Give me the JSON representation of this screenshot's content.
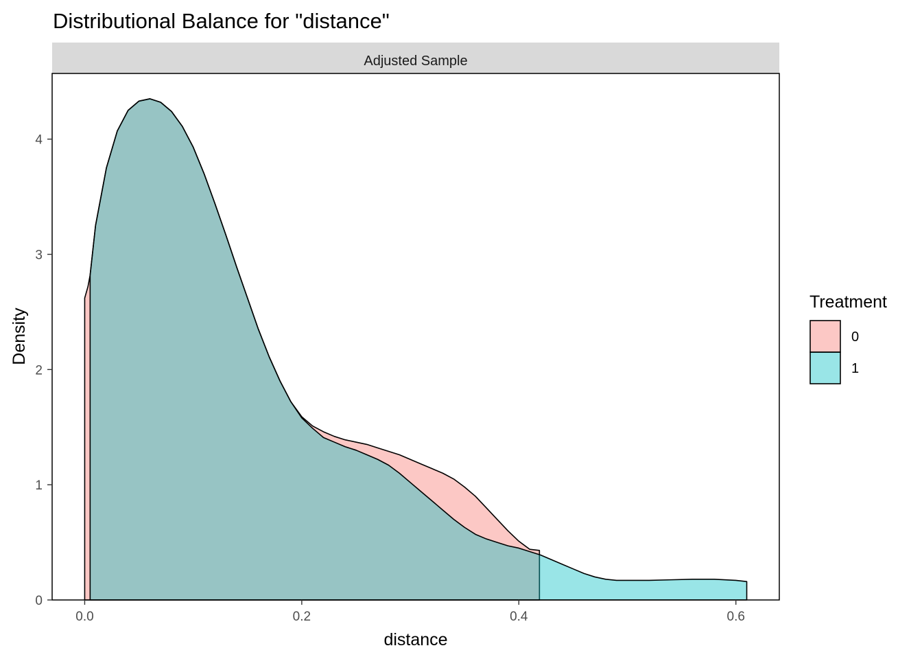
{
  "chart_data": {
    "type": "area",
    "title": "Distributional Balance for \"distance\"",
    "facet_label": "Adjusted Sample",
    "xlabel": "distance",
    "ylabel": "Density",
    "xlim": [
      -0.03,
      0.64
    ],
    "ylim": [
      0,
      4.57
    ],
    "x_ticks": [
      0.0,
      0.2,
      0.4,
      0.6
    ],
    "x_tick_labels": [
      "0.0",
      "0.2",
      "0.4",
      "0.6"
    ],
    "y_ticks": [
      0,
      1,
      2,
      3,
      4
    ],
    "y_tick_labels": [
      "0",
      "1",
      "2",
      "3",
      "4"
    ],
    "grid": false,
    "legend": {
      "title": "Treatment",
      "position": "right",
      "entries": [
        {
          "label": "0",
          "color": "#F8766D"
        },
        {
          "label": "1",
          "color": "#00BFC4"
        }
      ]
    },
    "fill_opacity": 0.4,
    "series": [
      {
        "name": "0",
        "color": "#F8766D",
        "x": [
          0.0,
          0.003,
          0.005,
          0.01,
          0.02,
          0.03,
          0.04,
          0.05,
          0.06,
          0.07,
          0.08,
          0.09,
          0.1,
          0.11,
          0.12,
          0.13,
          0.14,
          0.15,
          0.16,
          0.17,
          0.18,
          0.19,
          0.2,
          0.21,
          0.22,
          0.23,
          0.24,
          0.25,
          0.26,
          0.27,
          0.28,
          0.29,
          0.3,
          0.31,
          0.32,
          0.33,
          0.34,
          0.35,
          0.36,
          0.37,
          0.38,
          0.39,
          0.4,
          0.41,
          0.419
        ],
        "y": [
          2.62,
          2.72,
          2.82,
          3.25,
          3.75,
          4.07,
          4.25,
          4.33,
          4.35,
          4.32,
          4.24,
          4.11,
          3.93,
          3.7,
          3.44,
          3.17,
          2.89,
          2.62,
          2.35,
          2.11,
          1.9,
          1.72,
          1.59,
          1.51,
          1.46,
          1.42,
          1.39,
          1.37,
          1.35,
          1.32,
          1.29,
          1.26,
          1.22,
          1.18,
          1.14,
          1.1,
          1.05,
          0.98,
          0.9,
          0.8,
          0.7,
          0.6,
          0.51,
          0.44,
          0.43
        ]
      },
      {
        "name": "1",
        "color": "#00BFC4",
        "x": [
          0.005,
          0.01,
          0.02,
          0.03,
          0.04,
          0.05,
          0.06,
          0.07,
          0.08,
          0.09,
          0.1,
          0.11,
          0.12,
          0.13,
          0.14,
          0.15,
          0.16,
          0.17,
          0.18,
          0.19,
          0.2,
          0.21,
          0.22,
          0.23,
          0.24,
          0.25,
          0.26,
          0.27,
          0.28,
          0.29,
          0.3,
          0.31,
          0.32,
          0.33,
          0.34,
          0.35,
          0.36,
          0.37,
          0.38,
          0.39,
          0.4,
          0.41,
          0.42,
          0.43,
          0.44,
          0.45,
          0.46,
          0.47,
          0.48,
          0.49,
          0.5,
          0.52,
          0.54,
          0.56,
          0.58,
          0.6,
          0.61
        ],
        "y": [
          2.82,
          3.25,
          3.75,
          4.07,
          4.25,
          4.33,
          4.35,
          4.32,
          4.24,
          4.11,
          3.93,
          3.7,
          3.44,
          3.17,
          2.89,
          2.62,
          2.35,
          2.11,
          1.9,
          1.72,
          1.58,
          1.49,
          1.41,
          1.37,
          1.33,
          1.3,
          1.26,
          1.22,
          1.17,
          1.1,
          1.02,
          0.94,
          0.86,
          0.78,
          0.7,
          0.63,
          0.57,
          0.53,
          0.5,
          0.47,
          0.45,
          0.42,
          0.39,
          0.35,
          0.31,
          0.27,
          0.23,
          0.2,
          0.18,
          0.17,
          0.17,
          0.17,
          0.175,
          0.18,
          0.18,
          0.17,
          0.16
        ]
      }
    ]
  }
}
